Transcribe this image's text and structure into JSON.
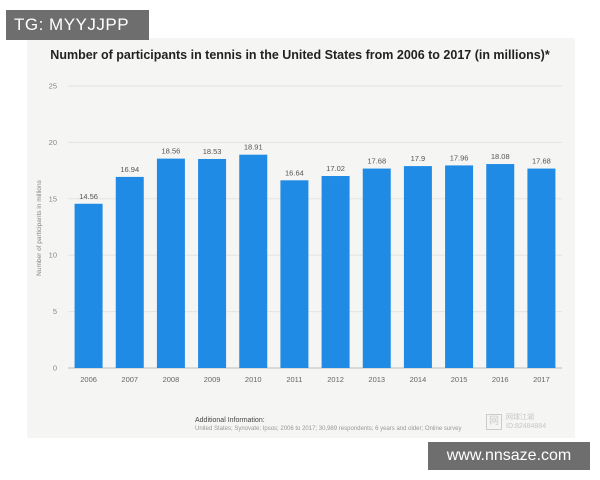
{
  "overlays": {
    "top_label": "TG: MYYJJPP",
    "bottom_label": "www.nnsaze.com"
  },
  "chart_data": {
    "type": "bar",
    "title": "Number of participants in tennis in the United States from 2006 to 2017 (in millions)*",
    "xlabel": "",
    "ylabel": "Number of participants in millions",
    "ylim": [
      0,
      25
    ],
    "yticks": [
      0,
      5,
      10,
      15,
      20,
      25
    ],
    "categories": [
      "2006",
      "2007",
      "2008",
      "2009",
      "2010",
      "2011",
      "2012",
      "2013",
      "2014",
      "2015",
      "2016",
      "2017"
    ],
    "values": [
      14.56,
      16.94,
      18.56,
      18.53,
      18.91,
      16.64,
      17.02,
      17.68,
      17.9,
      17.96,
      18.08,
      17.68
    ],
    "value_labels": [
      "14.56",
      "16.94",
      "18.56",
      "18.53",
      "18.91",
      "16.64",
      "17.02",
      "17.68",
      "17.9",
      "17.96",
      "18.08",
      "17.68"
    ],
    "bar_color": "#1f8be4",
    "grid": true
  },
  "footer": {
    "additional_info_label": "Additional Information:",
    "source_text": "United States; Synovate; Ipsos; 2006 to 2017; 30,989 respondents; 6 years and older; Online survey",
    "watermark_icon": "网",
    "watermark_line1": "网球江湖",
    "watermark_line2": "ID:82484884"
  }
}
